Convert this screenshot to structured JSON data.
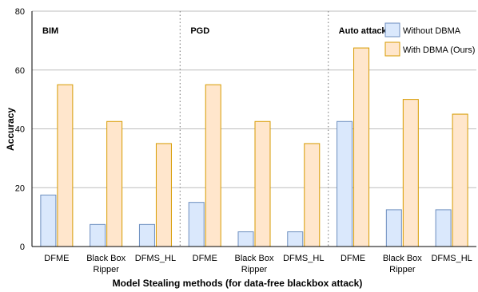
{
  "chart_data": {
    "type": "bar",
    "xlabel": "Model Stealing methods (for data-free blackbox attack)",
    "ylabel": "Accuracy",
    "ylim": [
      0,
      80
    ],
    "yticks": [
      "0",
      "20",
      "40",
      "60",
      "80"
    ],
    "grid": "horizontal",
    "legend_position": "top-right",
    "groups": [
      {
        "label": "BIM",
        "categories": [
          [
            "DFME"
          ],
          [
            "Black Box",
            "Ripper"
          ],
          [
            "DFMS_HL"
          ]
        ]
      },
      {
        "label": "PGD",
        "categories": [
          [
            "DFME"
          ],
          [
            "Black Box",
            "Ripper"
          ],
          [
            "DFMS_HL"
          ]
        ]
      },
      {
        "label": "Auto attack",
        "categories": [
          [
            "DFME"
          ],
          [
            "Black Box",
            "Ripper"
          ],
          [
            "DFMS_HL"
          ]
        ]
      }
    ],
    "series": [
      {
        "name": "Without DBMA",
        "color": "#dae8fc",
        "stroke": "#6c8ebf",
        "values": [
          17.5,
          7.5,
          7.5,
          15,
          5,
          5,
          42.5,
          12.5,
          12.5
        ]
      },
      {
        "name": "With DBMA (Ours)",
        "color": "#ffe6cc",
        "stroke": "#d79b00",
        "values": [
          55,
          42.5,
          35,
          55,
          42.5,
          35,
          67.5,
          50,
          45
        ]
      }
    ]
  }
}
